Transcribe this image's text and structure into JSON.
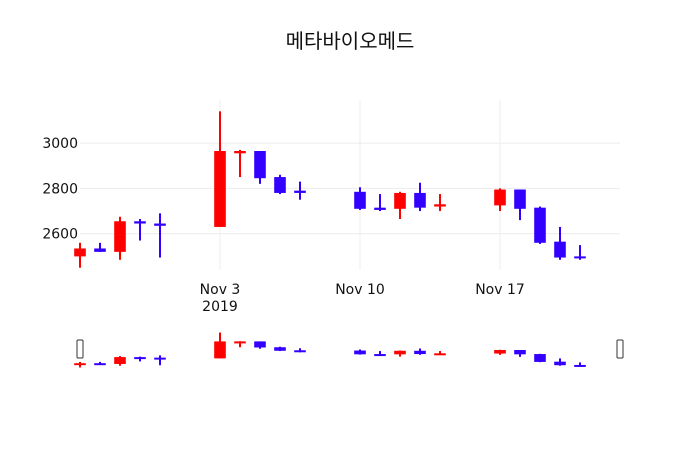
{
  "chart_data": {
    "type": "candlestick",
    "title": "메타바이오메드",
    "xlabel": "",
    "ylabel": "",
    "x_axis": {
      "tick_labels": [
        "Nov 3",
        "Nov 10",
        "Nov 17"
      ],
      "tick_dates": [
        "2019-11-03",
        "2019-11-10",
        "2019-11-17"
      ],
      "year_label": "2019",
      "range": [
        "2019-10-27",
        "2019-11-23"
      ]
    },
    "y_axis": {
      "tick_labels": [
        "2600",
        "2800",
        "3000"
      ],
      "tick_values": [
        2600,
        2800,
        3000
      ],
      "range": [
        2440,
        3190
      ]
    },
    "grid": {
      "horizontal": true,
      "vertical": true
    },
    "rangeslider": true,
    "colors": {
      "increasing": "#ff0000",
      "decreasing": "#3300ff",
      "background": "#ffffff",
      "text": "#111111",
      "grid": "#ececec"
    },
    "points": [
      {
        "date": "2019-10-27",
        "open": 2500,
        "high": 2560,
        "low": 2450,
        "close": 2535
      },
      {
        "date": "2019-10-28",
        "open": 2535,
        "high": 2560,
        "low": 2520,
        "close": 2520
      },
      {
        "date": "2019-10-29",
        "open": 2520,
        "high": 2675,
        "low": 2485,
        "close": 2655
      },
      {
        "date": "2019-10-30",
        "open": 2655,
        "high": 2665,
        "low": 2570,
        "close": 2645
      },
      {
        "date": "2019-10-31",
        "open": 2645,
        "high": 2690,
        "low": 2495,
        "close": 2635
      },
      {
        "date": "2019-11-03",
        "open": 2630,
        "high": 3140,
        "low": 2630,
        "close": 2965
      },
      {
        "date": "2019-11-04",
        "open": 2955,
        "high": 2970,
        "low": 2850,
        "close": 2965
      },
      {
        "date": "2019-11-05",
        "open": 2965,
        "high": 2965,
        "low": 2820,
        "close": 2845
      },
      {
        "date": "2019-11-06",
        "open": 2850,
        "high": 2860,
        "low": 2775,
        "close": 2780
      },
      {
        "date": "2019-11-07",
        "open": 2790,
        "high": 2830,
        "low": 2750,
        "close": 2780
      },
      {
        "date": "2019-11-10",
        "open": 2785,
        "high": 2805,
        "low": 2705,
        "close": 2710
      },
      {
        "date": "2019-11-11",
        "open": 2715,
        "high": 2775,
        "low": 2700,
        "close": 2705
      },
      {
        "date": "2019-11-12",
        "open": 2710,
        "high": 2785,
        "low": 2665,
        "close": 2780
      },
      {
        "date": "2019-11-13",
        "open": 2780,
        "high": 2825,
        "low": 2700,
        "close": 2715
      },
      {
        "date": "2019-11-14",
        "open": 2720,
        "high": 2775,
        "low": 2700,
        "close": 2730
      },
      {
        "date": "2019-11-17",
        "open": 2725,
        "high": 2800,
        "low": 2700,
        "close": 2795
      },
      {
        "date": "2019-11-18",
        "open": 2795,
        "high": 2795,
        "low": 2660,
        "close": 2710
      },
      {
        "date": "2019-11-19",
        "open": 2715,
        "high": 2720,
        "low": 2555,
        "close": 2560
      },
      {
        "date": "2019-11-20",
        "open": 2565,
        "high": 2630,
        "low": 2485,
        "close": 2495
      },
      {
        "date": "2019-11-21",
        "open": 2500,
        "high": 2550,
        "low": 2485,
        "close": 2495
      }
    ]
  }
}
